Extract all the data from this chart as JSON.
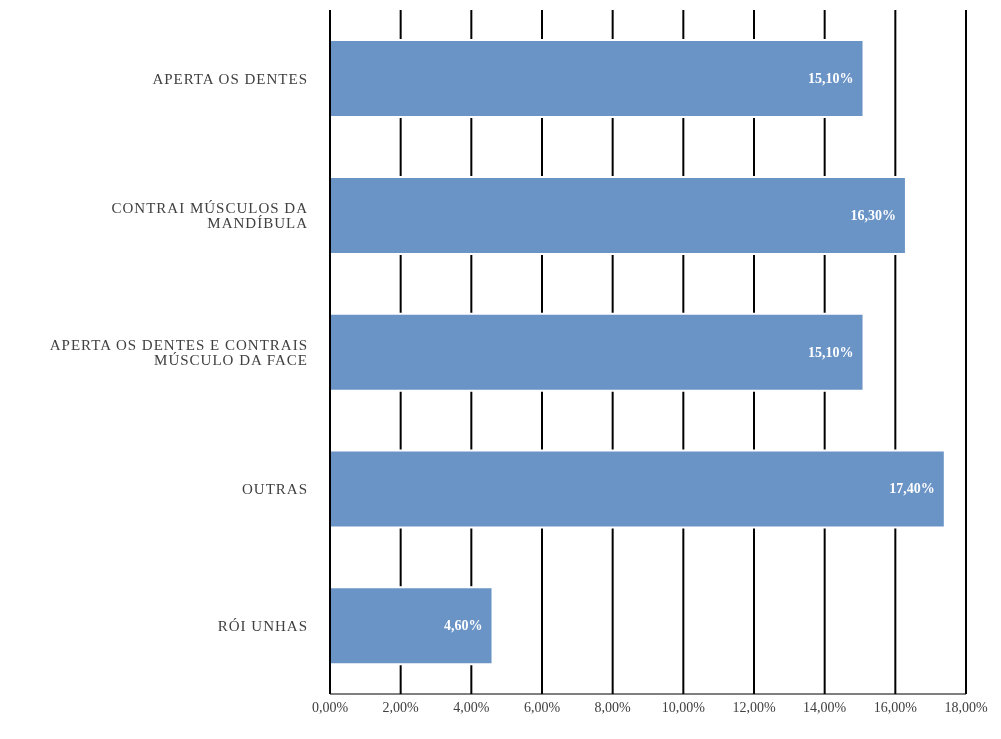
{
  "chart_data": {
    "type": "bar",
    "orientation": "horizontal",
    "categories": [
      "APERTA OS DENTES",
      "CONTRAI MÚSCULOS DA MANDÍBULA",
      "APERTA OS DENTES E CONTRAIS MÚSCULO DA FACE",
      "OUTRAS",
      "RÓI UNHAS"
    ],
    "values": [
      15.1,
      16.3,
      15.1,
      17.4,
      4.6
    ],
    "value_labels": [
      "15,10%",
      "16,30%",
      "15,10%",
      "17,40%",
      "4,60%"
    ],
    "color": "#6a93c6",
    "xlim": [
      0,
      18
    ],
    "xticks": [
      {
        "value": 0,
        "label": "0,00%"
      },
      {
        "value": 2,
        "label": "2,00%"
      },
      {
        "value": 4,
        "label": "4,00%"
      },
      {
        "value": 6,
        "label": "6,00%"
      },
      {
        "value": 8,
        "label": "8,00%"
      },
      {
        "value": 10,
        "label": "10,00%"
      },
      {
        "value": 12,
        "label": "12,00%"
      },
      {
        "value": 14,
        "label": "14,00%"
      },
      {
        "value": 16,
        "label": "16,00%"
      },
      {
        "value": 18,
        "label": "18,00%"
      }
    ],
    "grid": "x"
  }
}
